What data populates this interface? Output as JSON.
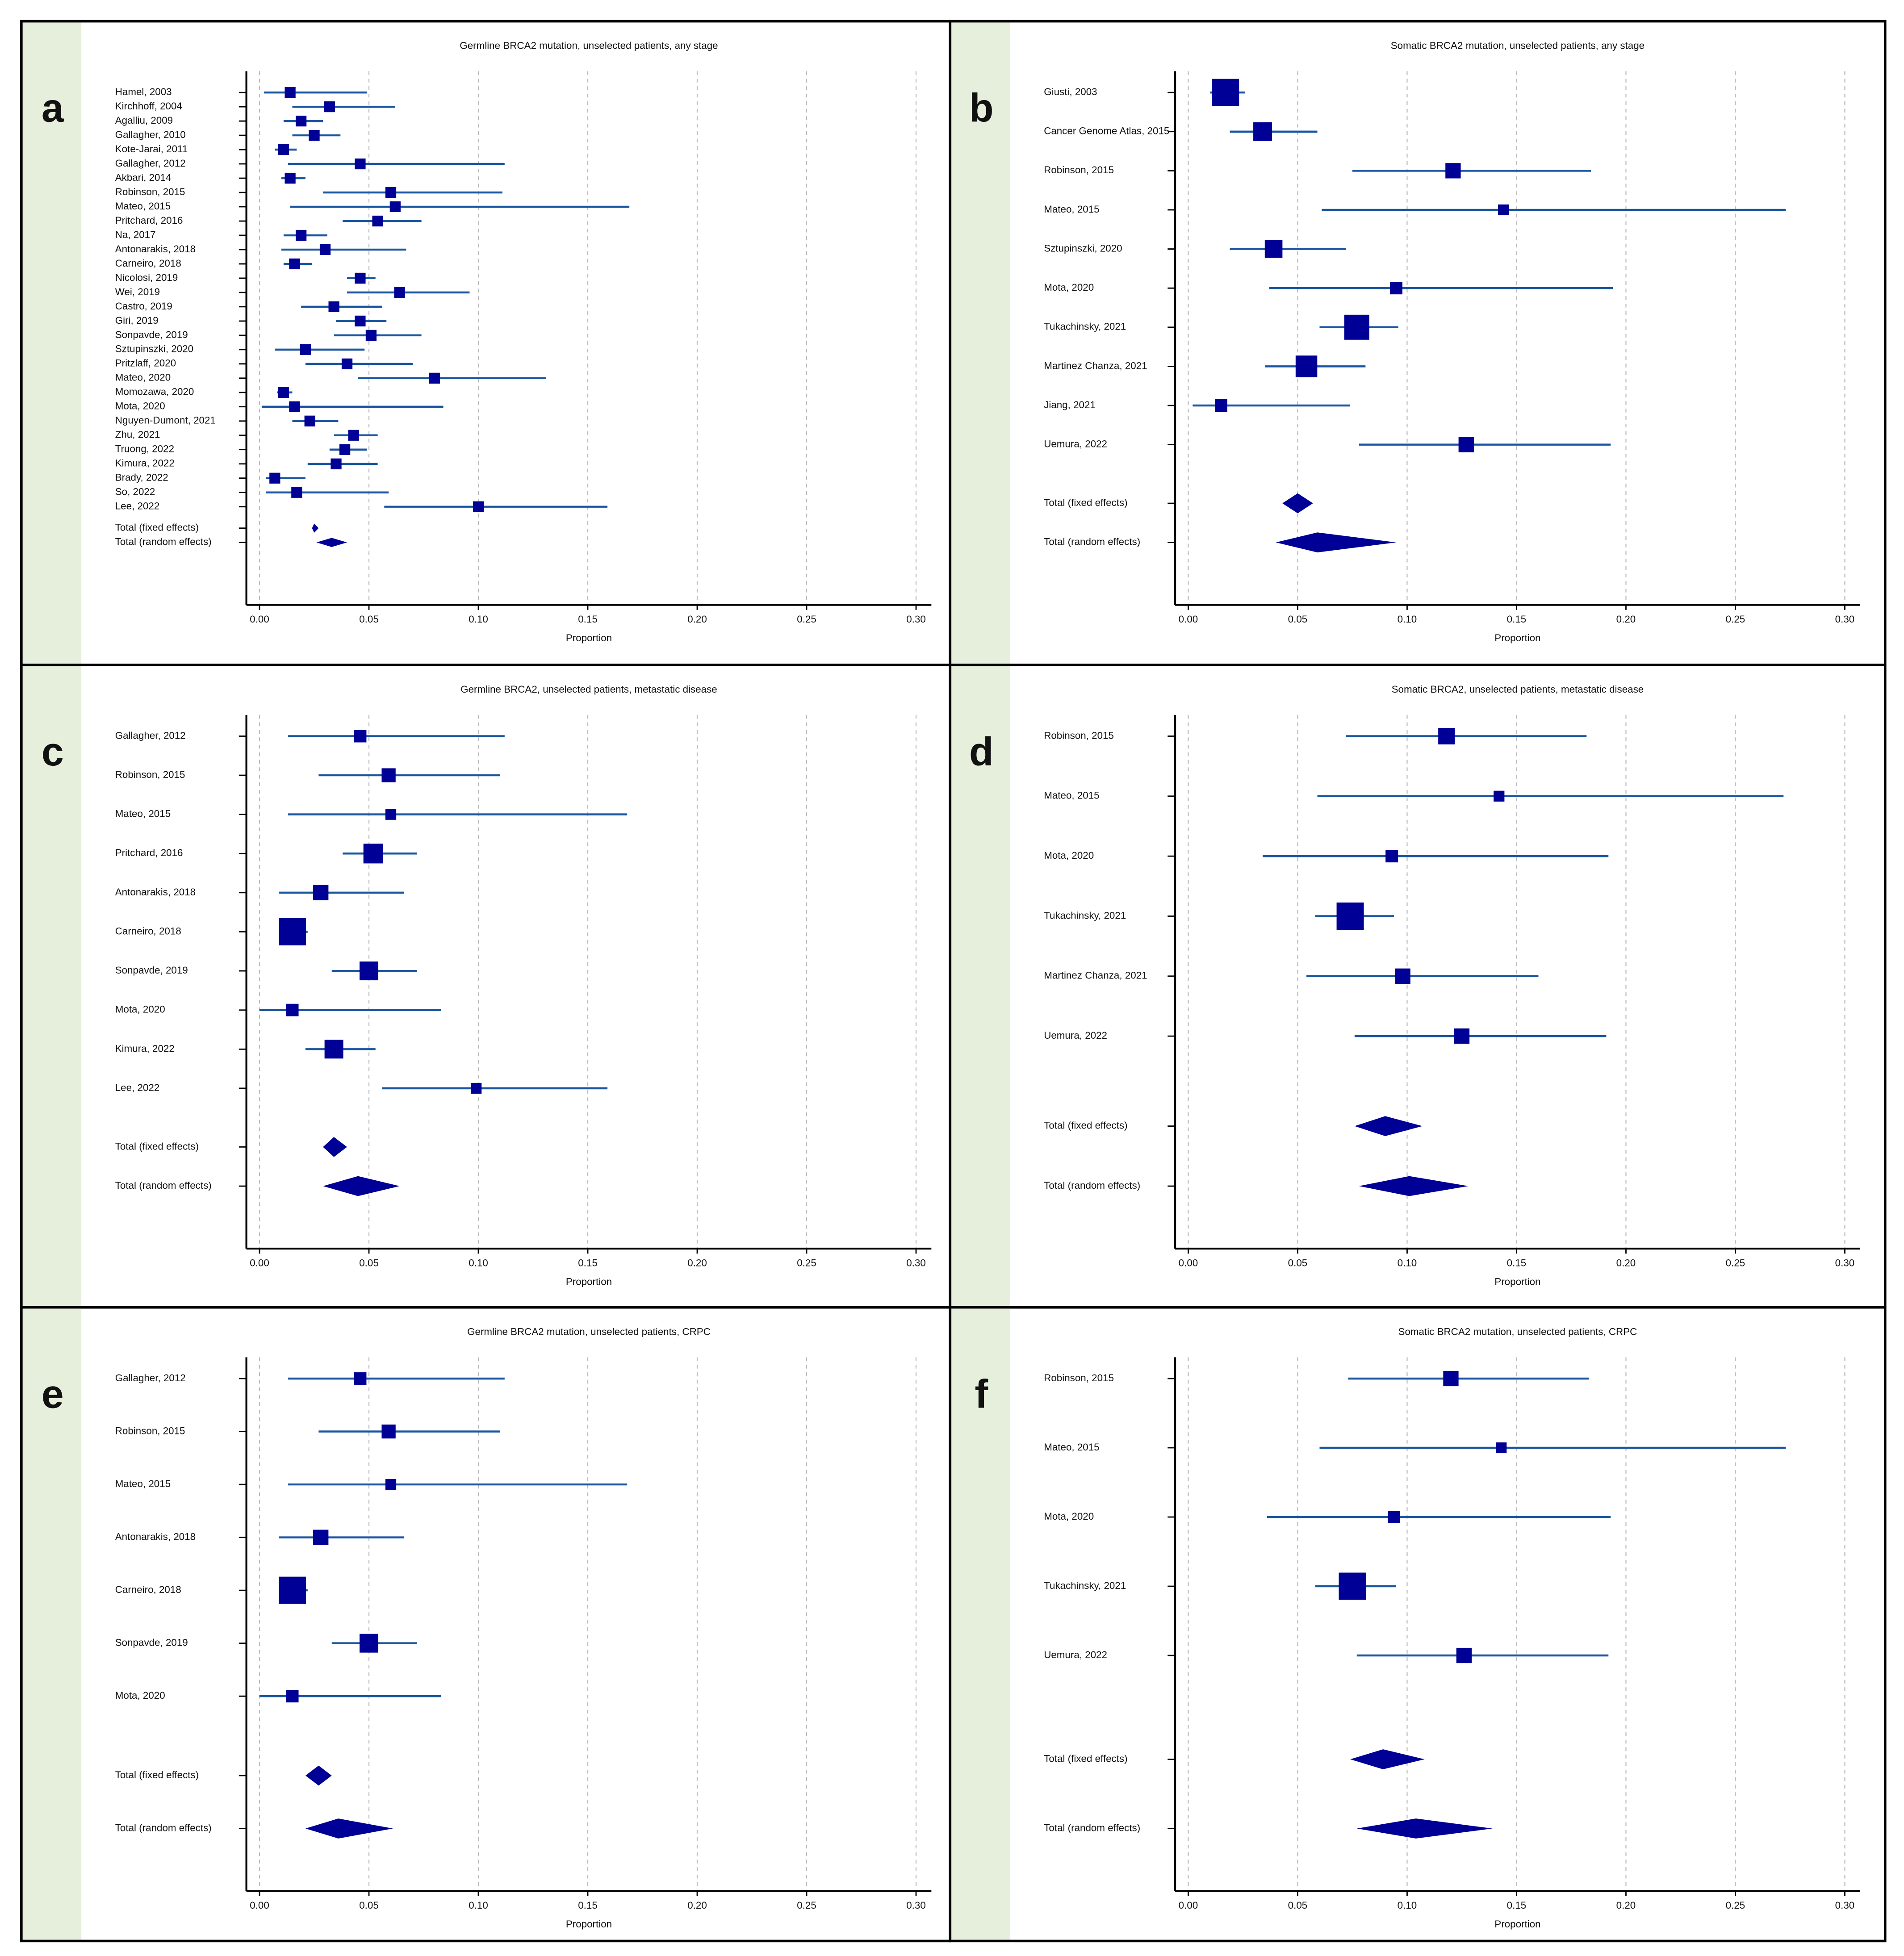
{
  "chart_data": [
    {
      "type": "forest",
      "panel": "a",
      "title": "Germline BRCA2 mutation, unselected patients, any stage",
      "xlabel": "Proportion",
      "xlim": [
        -0.006,
        0.307
      ],
      "xticks": [
        {
          "value": 0,
          "label": "0.00"
        },
        {
          "value": 0.05,
          "label": "0.05"
        },
        {
          "value": 0.1,
          "label": "0.10"
        },
        {
          "value": 0.15,
          "label": "0.15"
        },
        {
          "value": 0.2,
          "label": "0.20"
        },
        {
          "value": 0.25,
          "label": "0.25"
        },
        {
          "value": 0.3,
          "label": "0.30"
        }
      ],
      "grid": true,
      "color": "#000096",
      "line_color": "#1a56a0",
      "categories": [
        "Hamel, 2003",
        "Kirchhoff, 2004",
        "Agalliu, 2009",
        "Gallagher, 2010",
        "Kote-Jarai, 2011",
        "Gallagher, 2012",
        "Akbari, 2014",
        "Robinson, 2015",
        "Mateo, 2015",
        "Pritchard, 2016",
        "Na, 2017",
        "Antonarakis, 2018",
        "Carneiro, 2018",
        "Nicolosi, 2019",
        "Wei, 2019",
        "Castro, 2019",
        "Giri, 2019",
        "Sonpavde, 2019",
        "Sztupinszki, 2020",
        "Pritzlaff, 2020",
        "Mateo, 2020",
        "Momozawa, 2020",
        "Mota, 2020",
        "Nguyen-Dumont, 2021",
        "Zhu, 2021",
        "Truong, 2022",
        "Kimura, 2022",
        "Brady, 2022",
        "So, 2022",
        "Lee, 2022"
      ],
      "values": [
        0.014,
        0.032,
        0.019,
        0.025,
        0.011,
        0.046,
        0.014,
        0.06,
        0.062,
        0.054,
        0.019,
        0.03,
        0.016,
        0.046,
        0.064,
        0.034,
        0.046,
        0.051,
        0.021,
        0.04,
        0.08,
        0.011,
        0.016,
        0.023,
        0.043,
        0.039,
        0.035,
        0.007,
        0.017,
        0.1
      ],
      "lower": [
        0.002,
        0.015,
        0.011,
        0.015,
        0.007,
        0.013,
        0.01,
        0.029,
        0.014,
        0.038,
        0.011,
        0.01,
        0.011,
        0.04,
        0.04,
        0.019,
        0.035,
        0.034,
        0.007,
        0.021,
        0.045,
        0.008,
        0.001,
        0.015,
        0.034,
        0.032,
        0.022,
        0.003,
        0.003,
        0.057
      ],
      "upper": [
        0.049,
        0.062,
        0.029,
        0.037,
        0.017,
        0.112,
        0.021,
        0.111,
        0.169,
        0.074,
        0.031,
        0.067,
        0.024,
        0.053,
        0.096,
        0.056,
        0.058,
        0.074,
        0.048,
        0.07,
        0.131,
        0.015,
        0.084,
        0.036,
        0.054,
        0.049,
        0.054,
        0.021,
        0.059,
        0.159
      ],
      "weights": [
        3,
        3,
        3,
        3,
        3,
        3,
        3,
        3,
        3,
        3,
        3,
        3,
        3,
        3,
        3,
        3,
        3,
        3,
        3,
        3,
        3,
        3,
        3,
        3,
        3,
        3,
        3,
        3,
        3,
        3
      ],
      "totals": {
        "categories": [
          "Total (fixed effects)",
          "Total (random effects)"
        ],
        "values": [
          0.025,
          0.033
        ],
        "lower": [
          0.024,
          0.026
        ],
        "upper": [
          0.027,
          0.04
        ]
      }
    },
    {
      "type": "forest",
      "panel": "b",
      "title": "Somatic BRCA2 mutation, unselected patients, any stage",
      "xlabel": "Proportion",
      "xlim": [
        -0.006,
        0.307
      ],
      "xticks": [
        {
          "value": 0,
          "label": "0.00"
        },
        {
          "value": 0.05,
          "label": "0.05"
        },
        {
          "value": 0.1,
          "label": "0.10"
        },
        {
          "value": 0.15,
          "label": "0.15"
        },
        {
          "value": 0.2,
          "label": "0.20"
        },
        {
          "value": 0.25,
          "label": "0.25"
        },
        {
          "value": 0.3,
          "label": "0.30"
        }
      ],
      "grid": true,
      "color": "#000096",
      "line_color": "#1a56a0",
      "categories": [
        "Giusti, 2003",
        "Cancer Genome Atlas, 2015",
        "Robinson, 2015",
        "Mateo, 2015",
        "Sztupinszki, 2020",
        "Mota, 2020",
        "Tukachinsky, 2021",
        "Martinez Chanza, 2021",
        "Jiang, 2021",
        "Uemura, 2022"
      ],
      "values": [
        0.017,
        0.034,
        0.121,
        0.144,
        0.039,
        0.095,
        0.077,
        0.054,
        0.015,
        0.127
      ],
      "lower": [
        0.01,
        0.019,
        0.075,
        0.061,
        0.019,
        0.037,
        0.06,
        0.035,
        0.002,
        0.078
      ],
      "upper": [
        0.026,
        0.059,
        0.184,
        0.273,
        0.072,
        0.194,
        0.096,
        0.081,
        0.074,
        0.193
      ],
      "weights": [
        19,
        9,
        6,
        3,
        8,
        4,
        16,
        12,
        4,
        6
      ],
      "totals": {
        "categories": [
          "Total (fixed effects)",
          "Total (random effects)"
        ],
        "values": [
          0.05,
          0.059
        ],
        "lower": [
          0.043,
          0.04
        ],
        "upper": [
          0.057,
          0.095
        ]
      }
    },
    {
      "type": "forest",
      "panel": "c",
      "title": "Germline BRCA2, unselected patients, metastatic disease",
      "xlabel": "Proportion",
      "xlim": [
        -0.006,
        0.307
      ],
      "xticks": [
        {
          "value": 0,
          "label": "0.00"
        },
        {
          "value": 0.05,
          "label": "0.05"
        },
        {
          "value": 0.1,
          "label": "0.10"
        },
        {
          "value": 0.15,
          "label": "0.15"
        },
        {
          "value": 0.2,
          "label": "0.20"
        },
        {
          "value": 0.25,
          "label": "0.25"
        },
        {
          "value": 0.3,
          "label": "0.30"
        }
      ],
      "grid": true,
      "color": "#000096",
      "line_color": "#1a56a0",
      "categories": [
        "Gallagher, 2012",
        "Robinson, 2015",
        "Mateo, 2015",
        "Pritchard, 2016",
        "Antonarakis, 2018",
        "Carneiro, 2018",
        "Sonpavde, 2019",
        "Mota, 2020",
        "Kimura, 2022",
        "Lee, 2022"
      ],
      "values": [
        0.046,
        0.059,
        0.06,
        0.052,
        0.028,
        0.015,
        0.05,
        0.015,
        0.034,
        0.099
      ],
      "lower": [
        0.013,
        0.027,
        0.013,
        0.038,
        0.009,
        0.01,
        0.033,
        0,
        0.021,
        0.056
      ],
      "upper": [
        0.112,
        0.11,
        0.168,
        0.072,
        0.066,
        0.022,
        0.072,
        0.083,
        0.053,
        0.159
      ],
      "weights": [
        4,
        5,
        3,
        10,
        6,
        19,
        9,
        4,
        9,
        3
      ],
      "totals": {
        "categories": [
          "Total (fixed effects)",
          "Total (random effects)"
        ],
        "values": [
          0.034,
          0.045
        ],
        "lower": [
          0.029,
          0.029
        ],
        "upper": [
          0.04,
          0.064
        ]
      }
    },
    {
      "type": "forest",
      "panel": "d",
      "title": "Somatic BRCA2, unselected patients, metastatic disease",
      "xlabel": "Proportion",
      "xlim": [
        -0.006,
        0.307
      ],
      "xticks": [
        {
          "value": 0,
          "label": "0.00"
        },
        {
          "value": 0.05,
          "label": "0.05"
        },
        {
          "value": 0.1,
          "label": "0.10"
        },
        {
          "value": 0.15,
          "label": "0.15"
        },
        {
          "value": 0.2,
          "label": "0.20"
        },
        {
          "value": 0.25,
          "label": "0.25"
        },
        {
          "value": 0.3,
          "label": "0.30"
        }
      ],
      "grid": true,
      "color": "#000096",
      "line_color": "#1a56a0",
      "categories": [
        "Robinson, 2015",
        "Mateo, 2015",
        "Mota, 2020",
        "Tukachinsky, 2021",
        "Martinez Chanza, 2021",
        "Uemura, 2022"
      ],
      "values": [
        0.118,
        0.142,
        0.093,
        0.074,
        0.098,
        0.125
      ],
      "lower": [
        0.072,
        0.059,
        0.034,
        0.058,
        0.054,
        0.076
      ],
      "upper": [
        0.182,
        0.272,
        0.192,
        0.094,
        0.16,
        0.191
      ],
      "weights": [
        7,
        3,
        4,
        19,
        6,
        6
      ],
      "totals": {
        "categories": [
          "Total (fixed effects)",
          "Total (random effects)"
        ],
        "values": [
          0.09,
          0.101
        ],
        "lower": [
          0.076,
          0.078
        ],
        "upper": [
          0.107,
          0.128
        ]
      }
    },
    {
      "type": "forest",
      "panel": "e",
      "title": "Germline BRCA2 mutation, unselected patients, CRPC",
      "xlabel": "Proportion",
      "xlim": [
        -0.006,
        0.307
      ],
      "xticks": [
        {
          "value": 0,
          "label": "0.00"
        },
        {
          "value": 0.05,
          "label": "0.05"
        },
        {
          "value": 0.1,
          "label": "0.10"
        },
        {
          "value": 0.15,
          "label": "0.15"
        },
        {
          "value": 0.2,
          "label": "0.20"
        },
        {
          "value": 0.25,
          "label": "0.25"
        },
        {
          "value": 0.3,
          "label": "0.30"
        }
      ],
      "grid": true,
      "color": "#000096",
      "line_color": "#1a56a0",
      "categories": [
        "Gallagher, 2012",
        "Robinson, 2015",
        "Mateo, 2015",
        "Antonarakis, 2018",
        "Carneiro, 2018",
        "Sonpavde, 2019",
        "Mota, 2020"
      ],
      "values": [
        0.046,
        0.059,
        0.06,
        0.028,
        0.015,
        0.05,
        0.015
      ],
      "lower": [
        0.013,
        0.027,
        0.013,
        0.009,
        0.01,
        0.033,
        0
      ],
      "upper": [
        0.112,
        0.11,
        0.168,
        0.066,
        0.022,
        0.072,
        0.083
      ],
      "weights": [
        4,
        5,
        3,
        6,
        19,
        9,
        4
      ],
      "totals": {
        "categories": [
          "Total (fixed effects)",
          "Total (random effects)"
        ],
        "values": [
          0.027,
          0.036
        ],
        "lower": [
          0.021,
          0.021
        ],
        "upper": [
          0.033,
          0.061
        ]
      }
    },
    {
      "type": "forest",
      "panel": "f",
      "title": "Somatic BRCA2 mutation, unselected patients, CRPC",
      "xlabel": "Proportion",
      "xlim": [
        -0.006,
        0.307
      ],
      "xticks": [
        {
          "value": 0,
          "label": "0.00"
        },
        {
          "value": 0.05,
          "label": "0.05"
        },
        {
          "value": 0.1,
          "label": "0.10"
        },
        {
          "value": 0.15,
          "label": "0.15"
        },
        {
          "value": 0.2,
          "label": "0.20"
        },
        {
          "value": 0.25,
          "label": "0.25"
        },
        {
          "value": 0.3,
          "label": "0.30"
        }
      ],
      "grid": true,
      "color": "#000096",
      "line_color": "#1a56a0",
      "categories": [
        "Robinson, 2015",
        "Mateo, 2015",
        "Mota, 2020",
        "Tukachinsky, 2021",
        "Uemura, 2022"
      ],
      "values": [
        0.12,
        0.143,
        0.094,
        0.075,
        0.126
      ],
      "lower": [
        0.073,
        0.06,
        0.036,
        0.058,
        0.077
      ],
      "upper": [
        0.183,
        0.273,
        0.193,
        0.095,
        0.192
      ],
      "weights": [
        6,
        3,
        4,
        19,
        6
      ],
      "totals": {
        "categories": [
          "Total (fixed effects)",
          "Total (random effects)"
        ],
        "values": [
          0.089,
          0.104
        ],
        "lower": [
          0.074,
          0.077
        ],
        "upper": [
          0.108,
          0.139
        ]
      }
    }
  ]
}
